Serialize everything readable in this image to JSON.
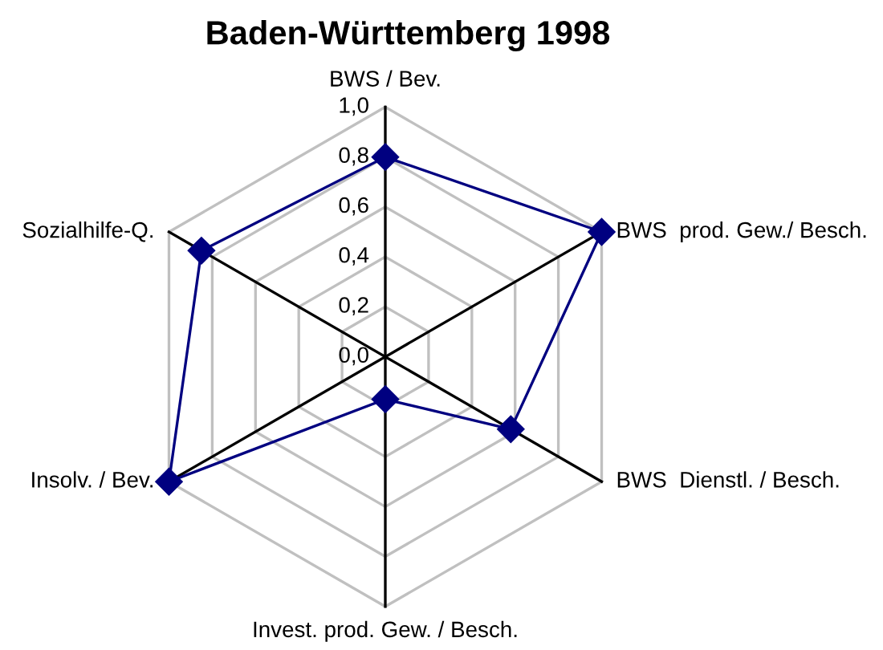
{
  "chart_data": {
    "type": "radar",
    "title": "Baden-Württemberg 1998",
    "categories": [
      "BWS / Bev.",
      "BWS  prod. Gew./ Besch.",
      "BWS  Dienstl. / Besch.",
      "Invest. prod. Gew. / Besch.",
      "Insolv. / Bev.",
      "Sozialhilfe-Q."
    ],
    "series": [
      {
        "color": "#000080",
        "values": [
          0.8,
          1.0,
          0.58,
          0.17,
          1.0,
          0.85
        ]
      }
    ],
    "ylim": [
      0,
      1
    ],
    "yticks": [
      {
        "value": 0,
        "label": "0,0"
      },
      {
        "value": 0.2,
        "label": "0,2"
      },
      {
        "value": 0.4,
        "label": "0,4"
      },
      {
        "value": 0.6,
        "label": "0,6"
      },
      {
        "value": 0.8,
        "label": "0,8"
      },
      {
        "value": 1,
        "label": "1,0"
      }
    ],
    "grid": true,
    "marker": "diamond",
    "line_style": "solid"
  }
}
